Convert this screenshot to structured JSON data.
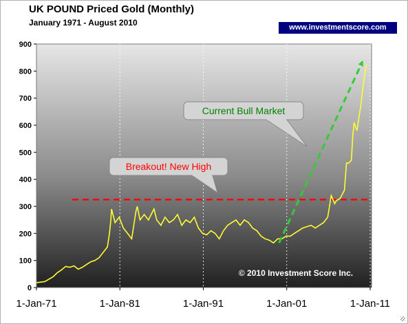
{
  "chart_data": {
    "type": "line",
    "title": "UK POUND Priced Gold (Monthly)",
    "subtitle": "January 1971 - August 2010",
    "source": "www.investmentscore.com",
    "copyright": "© 2010 Investment Score Inc.",
    "xlabel": "",
    "ylabel": "",
    "ylim": [
      0,
      900
    ],
    "yticks": [
      "0",
      "100",
      "200",
      "300",
      "400",
      "500",
      "600",
      "700",
      "800",
      "900"
    ],
    "xlim": [
      "1971-01",
      "2011-03"
    ],
    "xticks": [
      {
        "date": "1971-01",
        "label": "1-Jan-71"
      },
      {
        "date": "1981-01",
        "label": "1-Jan-81"
      },
      {
        "date": "1991-01",
        "label": "1-Jan-91"
      },
      {
        "date": "2001-01",
        "label": "1-Jan-01"
      },
      {
        "date": "2011-01",
        "label": "1-Jan-11"
      }
    ],
    "grid": "vertical",
    "series": [
      {
        "color": "#ffff33",
        "x": [
          "1971-01",
          "1972-01",
          "1973-01",
          "1973-07",
          "1974-01",
          "1974-07",
          "1975-01",
          "1975-07",
          "1976-01",
          "1976-07",
          "1977-01",
          "1977-07",
          "1978-01",
          "1978-07",
          "1979-01",
          "1979-07",
          "1979-10",
          "1979-12",
          "1980-01",
          "1980-06",
          "1980-12",
          "1981-06",
          "1981-12",
          "1982-06",
          "1982-12",
          "1983-02",
          "1983-06",
          "1983-12",
          "1984-06",
          "1984-12",
          "1985-02",
          "1985-06",
          "1985-12",
          "1986-06",
          "1986-12",
          "1987-06",
          "1987-12",
          "1988-06",
          "1988-12",
          "1989-06",
          "1989-12",
          "1990-06",
          "1990-12",
          "1991-06",
          "1991-12",
          "1992-06",
          "1992-12",
          "1993-06",
          "1993-12",
          "1994-06",
          "1994-12",
          "1995-06",
          "1995-12",
          "1996-06",
          "1996-12",
          "1997-06",
          "1997-12",
          "1998-06",
          "1998-12",
          "1999-06",
          "1999-12",
          "2000-06",
          "2000-12",
          "2001-06",
          "2001-12",
          "2002-06",
          "2002-12",
          "2003-06",
          "2003-12",
          "2004-06",
          "2004-12",
          "2005-06",
          "2005-12",
          "2006-05",
          "2006-10",
          "2006-12",
          "2007-06",
          "2007-12",
          "2008-03",
          "2008-06",
          "2008-10",
          "2008-12",
          "2009-02",
          "2009-06",
          "2009-12",
          "2010-02",
          "2010-06",
          "2010-08"
        ],
        "y": [
          18,
          22,
          40,
          55,
          65,
          78,
          75,
          80,
          68,
          75,
          85,
          95,
          100,
          110,
          130,
          150,
          200,
          250,
          290,
          240,
          260,
          220,
          200,
          180,
          280,
          300,
          250,
          270,
          250,
          280,
          290,
          250,
          230,
          260,
          240,
          250,
          270,
          230,
          250,
          240,
          260,
          220,
          200,
          195,
          210,
          200,
          180,
          210,
          230,
          240,
          250,
          230,
          250,
          240,
          220,
          210,
          190,
          180,
          175,
          165,
          180,
          180,
          190,
          190,
          200,
          210,
          220,
          225,
          230,
          220,
          230,
          240,
          260,
          340,
          310,
          320,
          330,
          360,
          460,
          460,
          470,
          560,
          610,
          580,
          680,
          730,
          800,
          825
        ]
      }
    ],
    "annotations": [
      {
        "text": "Breakout! New High",
        "color": "#ff0000"
      },
      {
        "text": "Current Bull Market",
        "color": "#008000"
      }
    ],
    "breakout_line": {
      "y": 325,
      "color": "#ff0000",
      "style": "dashed"
    },
    "bull_trend": {
      "from": [
        "2000-02",
        165
      ],
      "to": [
        "2010-01",
        830
      ],
      "color": "#33cc33",
      "style": "dashed"
    }
  }
}
